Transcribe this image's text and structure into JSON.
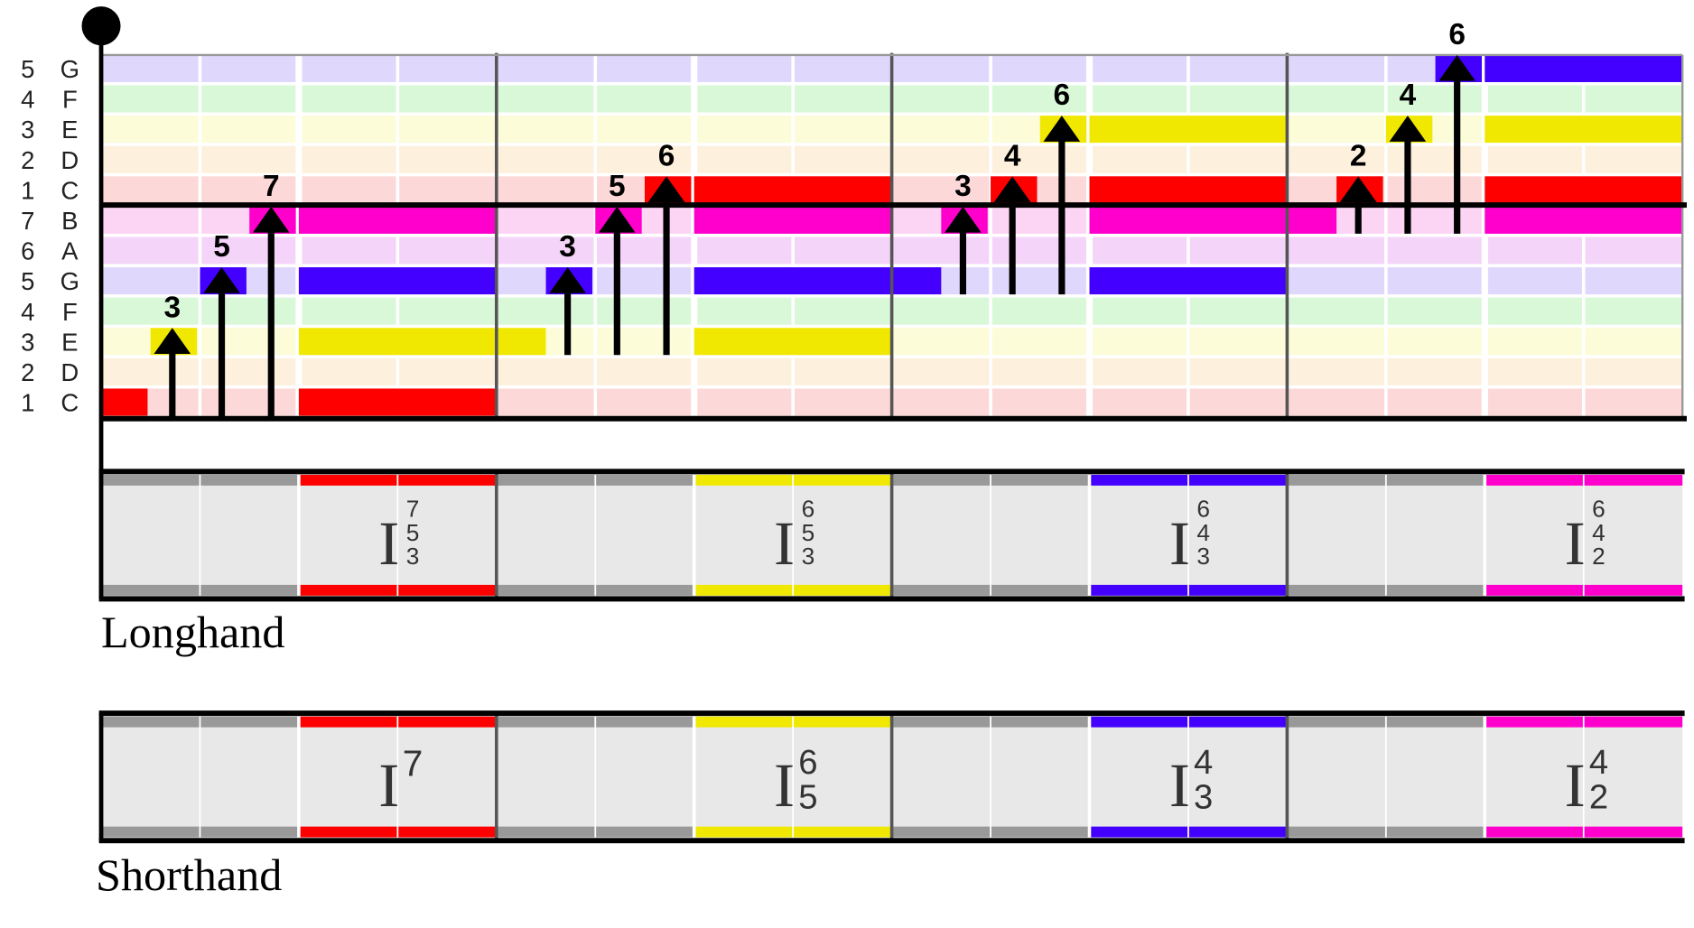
{
  "rows": [
    {
      "pitch": "G'",
      "degree": "5",
      "letter": "G",
      "tint": "#e0d8fc"
    },
    {
      "pitch": "F'",
      "degree": "4",
      "letter": "F",
      "tint": "#d8f8d8"
    },
    {
      "pitch": "E'",
      "degree": "3",
      "letter": "E",
      "tint": "#fcfcd8"
    },
    {
      "pitch": "D'",
      "degree": "2",
      "letter": "D",
      "tint": "#fdf0dc"
    },
    {
      "pitch": "C'",
      "degree": "1",
      "letter": "C",
      "tint": "#fdd8d8"
    },
    {
      "pitch": "B",
      "degree": "7",
      "letter": "B",
      "tint": "#fcd4f4"
    },
    {
      "pitch": "A",
      "degree": "6",
      "letter": "A",
      "tint": "#f4d4f8"
    },
    {
      "pitch": "G",
      "degree": "5",
      "letter": "G",
      "tint": "#e0d8fc"
    },
    {
      "pitch": "F",
      "degree": "4",
      "letter": "F",
      "tint": "#d8f8d8"
    },
    {
      "pitch": "E",
      "degree": "3",
      "letter": "E",
      "tint": "#fcfcd8"
    },
    {
      "pitch": "D",
      "degree": "2",
      "letter": "D",
      "tint": "#fdf0dc"
    },
    {
      "pitch": "C",
      "degree": "1",
      "letter": "C",
      "tint": "#fdd8d8"
    }
  ],
  "colors": {
    "C": "#ff0000",
    "E": "#f0e800",
    "G": "#4400ff",
    "B": "#ff00cc",
    "barline": "#555555",
    "strip_gray": "#999999",
    "strip_body": "#e8e8e8"
  },
  "meter": {
    "measures": 4,
    "beats_per_measure": 4
  },
  "notes": [
    {
      "pitch": "C",
      "start": 0,
      "end": 0.47,
      "color": "C"
    },
    {
      "pitch": "E",
      "start": 0.5,
      "end": 0.97,
      "color": "E"
    },
    {
      "pitch": "G",
      "start": 1.0,
      "end": 1.47,
      "color": "G"
    },
    {
      "pitch": "B",
      "start": 1.5,
      "end": 1.97,
      "color": "B"
    },
    {
      "pitch": "C",
      "start": 2,
      "end": 4,
      "color": "C"
    },
    {
      "pitch": "E",
      "start": 2,
      "end": 4.5,
      "color": "E"
    },
    {
      "pitch": "G",
      "start": 2,
      "end": 4,
      "color": "G"
    },
    {
      "pitch": "B",
      "start": 2,
      "end": 4,
      "color": "B"
    },
    {
      "pitch": "G",
      "start": 4.5,
      "end": 4.97,
      "color": "G"
    },
    {
      "pitch": "B",
      "start": 5.0,
      "end": 5.47,
      "color": "B"
    },
    {
      "pitch": "C'",
      "start": 5.5,
      "end": 5.97,
      "color": "C"
    },
    {
      "pitch": "E",
      "start": 6,
      "end": 8,
      "color": "E"
    },
    {
      "pitch": "G",
      "start": 6,
      "end": 8.5,
      "color": "G"
    },
    {
      "pitch": "B",
      "start": 6,
      "end": 8,
      "color": "B"
    },
    {
      "pitch": "C'",
      "start": 6,
      "end": 8,
      "color": "C"
    },
    {
      "pitch": "B",
      "start": 8.5,
      "end": 8.97,
      "color": "B"
    },
    {
      "pitch": "C'",
      "start": 9.0,
      "end": 9.47,
      "color": "C"
    },
    {
      "pitch": "E'",
      "start": 9.5,
      "end": 9.97,
      "color": "E"
    },
    {
      "pitch": "G",
      "start": 10,
      "end": 12,
      "color": "G"
    },
    {
      "pitch": "B",
      "start": 10,
      "end": 12.5,
      "color": "B"
    },
    {
      "pitch": "C'",
      "start": 10,
      "end": 12,
      "color": "C"
    },
    {
      "pitch": "E'",
      "start": 10,
      "end": 12,
      "color": "E"
    },
    {
      "pitch": "C'",
      "start": 12.5,
      "end": 12.97,
      "color": "C"
    },
    {
      "pitch": "E'",
      "start": 13.0,
      "end": 13.47,
      "color": "E"
    },
    {
      "pitch": "G'",
      "start": 13.5,
      "end": 13.97,
      "color": "G"
    },
    {
      "pitch": "B",
      "start": 14,
      "end": 16,
      "color": "B"
    },
    {
      "pitch": "C'",
      "start": 14,
      "end": 16,
      "color": "C"
    },
    {
      "pitch": "E'",
      "start": 14,
      "end": 16,
      "color": "E"
    },
    {
      "pitch": "G'",
      "start": 14,
      "end": 16,
      "color": "G"
    }
  ],
  "arrows": [
    {
      "beat": 0.72,
      "from": "C",
      "to": "E",
      "label": "3"
    },
    {
      "beat": 1.22,
      "from": "C",
      "to": "G",
      "label": "5"
    },
    {
      "beat": 1.72,
      "from": "C",
      "to": "B",
      "label": "7"
    },
    {
      "beat": 4.72,
      "from": "E",
      "to": "G",
      "label": "3"
    },
    {
      "beat": 5.22,
      "from": "E",
      "to": "B",
      "label": "5"
    },
    {
      "beat": 5.72,
      "from": "E",
      "to": "C'",
      "label": "6"
    },
    {
      "beat": 8.72,
      "from": "G",
      "to": "B",
      "label": "3"
    },
    {
      "beat": 9.22,
      "from": "G",
      "to": "C'",
      "label": "4"
    },
    {
      "beat": 9.72,
      "from": "G",
      "to": "E'",
      "label": "6"
    },
    {
      "beat": 12.72,
      "from": "B",
      "to": "C'",
      "label": "2"
    },
    {
      "beat": 13.22,
      "from": "B",
      "to": "E'",
      "label": "4"
    },
    {
      "beat": 13.72,
      "from": "B",
      "to": "G'",
      "label": "6"
    }
  ],
  "chords": {
    "longhand": {
      "caption": "Longhand",
      "items": [
        {
          "numeral": "I",
          "figures": [
            "7",
            "5",
            "3"
          ],
          "color": "C"
        },
        {
          "numeral": "I",
          "figures": [
            "6",
            "5",
            "3"
          ],
          "color": "E"
        },
        {
          "numeral": "I",
          "figures": [
            "6",
            "4",
            "3"
          ],
          "color": "G"
        },
        {
          "numeral": "I",
          "figures": [
            "6",
            "4",
            "2"
          ],
          "color": "B"
        }
      ]
    },
    "shorthand": {
      "caption": "Shorthand",
      "items": [
        {
          "numeral": "I",
          "figures": [
            "7"
          ],
          "color": "C"
        },
        {
          "numeral": "I",
          "figures": [
            "6",
            "5"
          ],
          "color": "E"
        },
        {
          "numeral": "I",
          "figures": [
            "4",
            "3"
          ],
          "color": "G"
        },
        {
          "numeral": "I",
          "figures": [
            "4",
            "2"
          ],
          "color": "B"
        }
      ]
    }
  }
}
